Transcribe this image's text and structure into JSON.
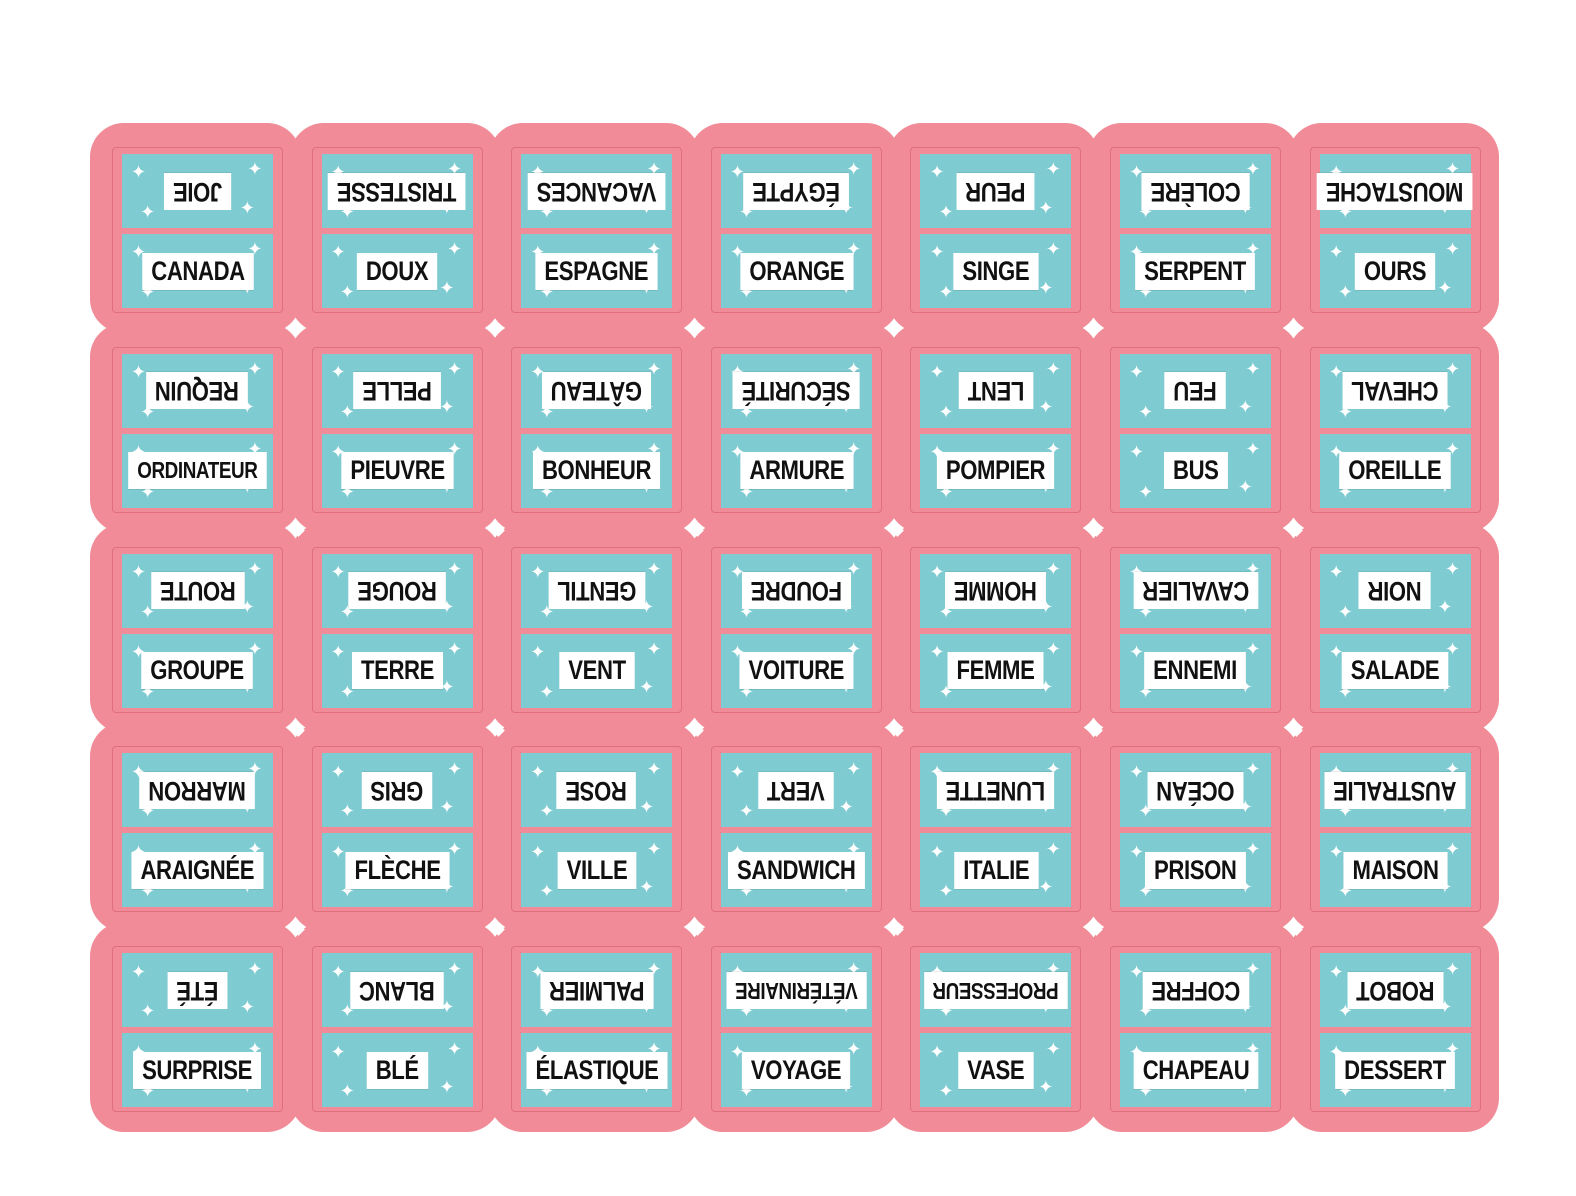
{
  "colors": {
    "card": "#f08b97",
    "panel": "#7ecbd1",
    "label": "#ffffff",
    "text": "#111111"
  },
  "sparkle_icon": "sparkle-icon",
  "dominoes": [
    [
      {
        "top": "JOIE",
        "bottom": "CANADA"
      },
      {
        "top": "TRISTESSE",
        "bottom": "DOUX"
      },
      {
        "top": "VACANCES",
        "bottom": "ESPAGNE"
      },
      {
        "top": "ÉGYPTE",
        "bottom": "ORANGE"
      },
      {
        "top": "PEUR",
        "bottom": "SINGE"
      },
      {
        "top": "COLÈRE",
        "bottom": "SERPENT"
      },
      {
        "top": "MOUSTACHE",
        "bottom": "OURS"
      }
    ],
    [
      {
        "top": "REQUIN",
        "bottom": "ORDINATEUR"
      },
      {
        "top": "PELLE",
        "bottom": "PIEUVRE"
      },
      {
        "top": "GÂTEAU",
        "bottom": "BONHEUR"
      },
      {
        "top": "SÉCURITÉ",
        "bottom": "ARMURE"
      },
      {
        "top": "LENT",
        "bottom": "POMPIER"
      },
      {
        "top": "FEU",
        "bottom": "BUS"
      },
      {
        "top": "CHEVAL",
        "bottom": "OREILLE"
      }
    ],
    [
      {
        "top": "ROUTE",
        "bottom": "GROUPE"
      },
      {
        "top": "ROUGE",
        "bottom": "TERRE"
      },
      {
        "top": "GENTIL",
        "bottom": "VENT"
      },
      {
        "top": "FOUDRE",
        "bottom": "VOITURE"
      },
      {
        "top": "HOMME",
        "bottom": "FEMME"
      },
      {
        "top": "CAVALIER",
        "bottom": "ENNEMI"
      },
      {
        "top": "NOIR",
        "bottom": "SALADE"
      }
    ],
    [
      {
        "top": "MARRON",
        "bottom": "ARAIGNÉE"
      },
      {
        "top": "GRIS",
        "bottom": "FLÈCHE"
      },
      {
        "top": "ROSE",
        "bottom": "VILLE"
      },
      {
        "top": "VERT",
        "bottom": "SANDWICH"
      },
      {
        "top": "LUNETTE",
        "bottom": "ITALIE"
      },
      {
        "top": "OCÉAN",
        "bottom": "PRISON"
      },
      {
        "top": "AUSTRALIE",
        "bottom": "MAISON"
      }
    ],
    [
      {
        "top": "ÉTÉ",
        "bottom": "SURPRISE"
      },
      {
        "top": "BLANC",
        "bottom": "BLÉ"
      },
      {
        "top": "PALMIER",
        "bottom": "ÉLASTIQUE"
      },
      {
        "top": "VÉTÉRINAIRE",
        "bottom": "VOYAGE"
      },
      {
        "top": "PROFESSEUR",
        "bottom": "VASE"
      },
      {
        "top": "COFFRE",
        "bottom": "CHAPEAU"
      },
      {
        "top": "ROBOT",
        "bottom": "DESSERT"
      }
    ]
  ]
}
